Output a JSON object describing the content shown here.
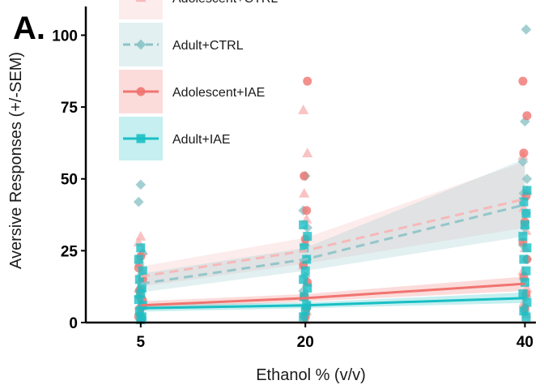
{
  "panel_label": "A.",
  "chart_data": {
    "type": "scatter",
    "title": "",
    "xlabel": "Ethanol % (v/v)",
    "ylabel": "Aversive Responses (+/-SEM)",
    "x_categories": [
      "5",
      "20",
      "40"
    ],
    "x_values": [
      5,
      20,
      40
    ],
    "xlim": [
      0,
      41
    ],
    "ylim": [
      0,
      110
    ],
    "y_ticks": [
      "0",
      "25",
      "50",
      "75",
      "100"
    ],
    "y_tick_values": [
      0,
      25,
      50,
      75,
      100
    ],
    "grid": false,
    "legend_position": "top-left",
    "series": [
      {
        "name": "Adolescent+CTRL",
        "color": "#f8b4b4",
        "marker": "triangle",
        "line_style": "dashed",
        "fit": [
          [
            5,
            16
          ],
          [
            20,
            25
          ],
          [
            40,
            43
          ]
        ],
        "band": [
          [
            5,
            12.5,
            19.5
          ],
          [
            20,
            20.5,
            29.5
          ],
          [
            40,
            33,
            56
          ]
        ],
        "points": [
          [
            5,
            30
          ],
          [
            5,
            28
          ],
          [
            5,
            25
          ],
          [
            5,
            22
          ],
          [
            5,
            18
          ],
          [
            5,
            15
          ],
          [
            5,
            12
          ],
          [
            5,
            9
          ],
          [
            5,
            6
          ],
          [
            5,
            3
          ],
          [
            5,
            1
          ],
          [
            20,
            74
          ],
          [
            20,
            59
          ],
          [
            20,
            45
          ],
          [
            20,
            36
          ],
          [
            20,
            28
          ],
          [
            20,
            20
          ],
          [
            20,
            14
          ],
          [
            20,
            9
          ],
          [
            20,
            4
          ],
          [
            20,
            1
          ],
          [
            40,
            58
          ],
          [
            40,
            46
          ],
          [
            40,
            40
          ],
          [
            40,
            32
          ],
          [
            40,
            26
          ],
          [
            40,
            18
          ],
          [
            40,
            12
          ],
          [
            40,
            7
          ],
          [
            40,
            3
          ]
        ]
      },
      {
        "name": "Adult+CTRL",
        "color": "#8cc3c6",
        "marker": "diamond",
        "line_style": "dashed",
        "fit": [
          [
            5,
            13.5
          ],
          [
            20,
            22
          ],
          [
            40,
            41
          ]
        ],
        "band": [
          [
            5,
            10.5,
            17
          ],
          [
            20,
            18,
            26
          ],
          [
            40,
            30,
            57
          ]
        ],
        "points": [
          [
            5,
            48
          ],
          [
            5,
            42
          ],
          [
            5,
            24
          ],
          [
            5,
            20
          ],
          [
            5,
            16
          ],
          [
            5,
            12
          ],
          [
            5,
            9
          ],
          [
            5,
            6
          ],
          [
            5,
            3
          ],
          [
            5,
            1
          ],
          [
            20,
            51
          ],
          [
            20,
            39
          ],
          [
            20,
            33
          ],
          [
            20,
            27
          ],
          [
            20,
            22
          ],
          [
            20,
            16
          ],
          [
            20,
            11
          ],
          [
            20,
            6
          ],
          [
            20,
            2
          ],
          [
            40,
            102
          ],
          [
            40,
            70
          ],
          [
            40,
            56
          ],
          [
            40,
            50
          ],
          [
            40,
            45
          ],
          [
            40,
            38
          ],
          [
            40,
            33
          ],
          [
            40,
            27
          ],
          [
            40,
            22
          ],
          [
            40,
            15
          ],
          [
            40,
            9
          ],
          [
            40,
            4
          ]
        ]
      },
      {
        "name": "Adolescent+IAE",
        "color": "#f07470",
        "marker": "circle",
        "line_style": "solid",
        "fit": [
          [
            5,
            6
          ],
          [
            20,
            8.5
          ],
          [
            40,
            13.5
          ]
        ],
        "band": [
          [
            5,
            4.8,
            7.4
          ],
          [
            20,
            7.3,
            9.9
          ],
          [
            40,
            11,
            16
          ]
        ],
        "points": [
          [
            5,
            23
          ],
          [
            5,
            19
          ],
          [
            5,
            15
          ],
          [
            5,
            11
          ],
          [
            5,
            8
          ],
          [
            5,
            5
          ],
          [
            5,
            2
          ],
          [
            20,
            84
          ],
          [
            20,
            51
          ],
          [
            20,
            39
          ],
          [
            20,
            29
          ],
          [
            20,
            20
          ],
          [
            20,
            14
          ],
          [
            20,
            9
          ],
          [
            20,
            5
          ],
          [
            20,
            2
          ],
          [
            40,
            84
          ],
          [
            40,
            72
          ],
          [
            40,
            59
          ],
          [
            40,
            44
          ],
          [
            40,
            35
          ],
          [
            40,
            28
          ],
          [
            40,
            22
          ],
          [
            40,
            16
          ],
          [
            40,
            10
          ],
          [
            40,
            5
          ]
        ]
      },
      {
        "name": "Adult+IAE",
        "color": "#19bfc4",
        "marker": "square",
        "line_style": "solid",
        "fit": [
          [
            5,
            5
          ],
          [
            20,
            6
          ],
          [
            40,
            8.5
          ]
        ],
        "band": [
          [
            5,
            3.8,
            6.2
          ],
          [
            20,
            5,
            7
          ],
          [
            40,
            6.8,
            10.5
          ]
        ],
        "points": [
          [
            5,
            26
          ],
          [
            5,
            22
          ],
          [
            5,
            18
          ],
          [
            5,
            15
          ],
          [
            5,
            12
          ],
          [
            5,
            10
          ],
          [
            5,
            8
          ],
          [
            5,
            6
          ],
          [
            5,
            4
          ],
          [
            5,
            2
          ],
          [
            5,
            1
          ],
          [
            20,
            34
          ],
          [
            20,
            30
          ],
          [
            20,
            26
          ],
          [
            20,
            22
          ],
          [
            20,
            18
          ],
          [
            20,
            15
          ],
          [
            20,
            12
          ],
          [
            20,
            9
          ],
          [
            20,
            6
          ],
          [
            20,
            4
          ],
          [
            20,
            2
          ],
          [
            40,
            46
          ],
          [
            40,
            42
          ],
          [
            40,
            38
          ],
          [
            40,
            34
          ],
          [
            40,
            30
          ],
          [
            40,
            26
          ],
          [
            40,
            22
          ],
          [
            40,
            18
          ],
          [
            40,
            14
          ],
          [
            40,
            10
          ],
          [
            40,
            7
          ],
          [
            40,
            4
          ],
          [
            40,
            2
          ]
        ]
      }
    ]
  }
}
